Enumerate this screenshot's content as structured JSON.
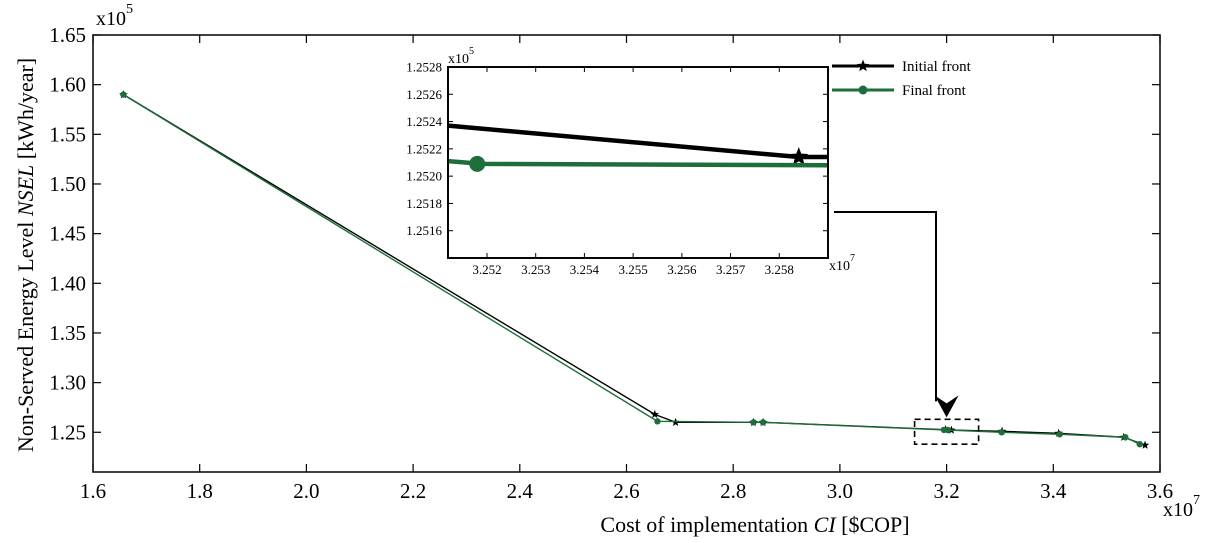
{
  "chart_data": {
    "type": "line",
    "xlabel": "Cost of implementation ",
    "xlabel_italic": "CI",
    "xlabel_unit": " [$COP]",
    "ylabel": "Non-Served Energy Level ",
    "ylabel_italic": "NSEL",
    "ylabel_unit": " [kWh/year]",
    "x_multiplier": "x10",
    "x_multiplier_exp": "7",
    "y_multiplier": "x10",
    "y_multiplier_exp": "5",
    "xlim": [
      1.6,
      3.6
    ],
    "ylim": [
      1.21,
      1.65
    ],
    "xticks": [
      1.6,
      1.8,
      2.0,
      2.2,
      2.4,
      2.6,
      2.8,
      3.0,
      3.2,
      3.4,
      3.6
    ],
    "xtick_labels": [
      "1.6",
      "1.8",
      "2.0",
      "2.2",
      "2.4",
      "2.6",
      "2.8",
      "3.0",
      "3.2",
      "3.4",
      "3.6"
    ],
    "yticks": [
      1.25,
      1.3,
      1.35,
      1.4,
      1.45,
      1.5,
      1.55,
      1.6,
      1.65
    ],
    "ytick_labels": [
      "1.25",
      "1.30",
      "1.35",
      "1.40",
      "1.45",
      "1.50",
      "1.55",
      "1.60",
      "1.65"
    ],
    "legend_position": "top-right",
    "series": [
      {
        "name": "Initial front",
        "color": "#000000",
        "marker": "star",
        "x": [
          1.657,
          2.653,
          2.692,
          2.838,
          2.856,
          3.198,
          3.209,
          3.304,
          3.41,
          3.532,
          3.572
        ],
        "y": [
          1.59,
          1.268,
          1.26,
          1.26,
          1.26,
          1.2526,
          1.2522,
          1.251,
          1.249,
          1.245,
          1.237
        ]
      },
      {
        "name": "Final front",
        "color": "#1e6e3c",
        "marker": "circle",
        "x": [
          1.657,
          2.658,
          2.838,
          2.856,
          3.195,
          3.202,
          3.303,
          3.412,
          3.535,
          3.562
        ],
        "y": [
          1.59,
          1.261,
          1.26,
          1.26,
          1.2524,
          1.2523,
          1.25,
          1.248,
          1.245,
          1.238
        ]
      }
    ],
    "inset": {
      "xlim": [
        3.2512,
        3.259
      ],
      "ylim": [
        1.2514,
        1.2528
      ],
      "xticks": [
        3.252,
        3.253,
        3.254,
        3.255,
        3.256,
        3.257,
        3.258
      ],
      "xtick_labels": [
        "3.252",
        "3.253",
        "3.254",
        "3.255",
        "3.256",
        "3.257",
        "3.258"
      ],
      "yticks": [
        1.2516,
        1.2518,
        1.252,
        1.2522,
        1.2524,
        1.2526,
        1.2528
      ],
      "ytick_labels": [
        "1.2516",
        "1.2518",
        "1.2520",
        "1.2522",
        "1.2524",
        "1.2526",
        "1.2528"
      ],
      "x_multiplier": "x10",
      "x_multiplier_exp": "7",
      "y_multiplier": "x10",
      "y_multiplier_exp": "5",
      "series": [
        {
          "name": "Initial front",
          "color": "#000000",
          "x": [
            3.2512,
            3.2584,
            3.259
          ],
          "y": [
            1.25237,
            1.25214,
            1.25214
          ],
          "marker_x": 3.2584,
          "marker_y": 1.25214
        },
        {
          "name": "Final front",
          "color": "#1e6e3c",
          "x": [
            3.2512,
            3.2519,
            3.259
          ],
          "y": [
            1.25211,
            1.25209,
            1.25208
          ],
          "marker_x": 3.2518,
          "marker_y": 1.25209
        }
      ]
    },
    "zoom_region": {
      "x": [
        3.14,
        3.26
      ],
      "y": [
        1.238,
        1.263
      ]
    }
  }
}
